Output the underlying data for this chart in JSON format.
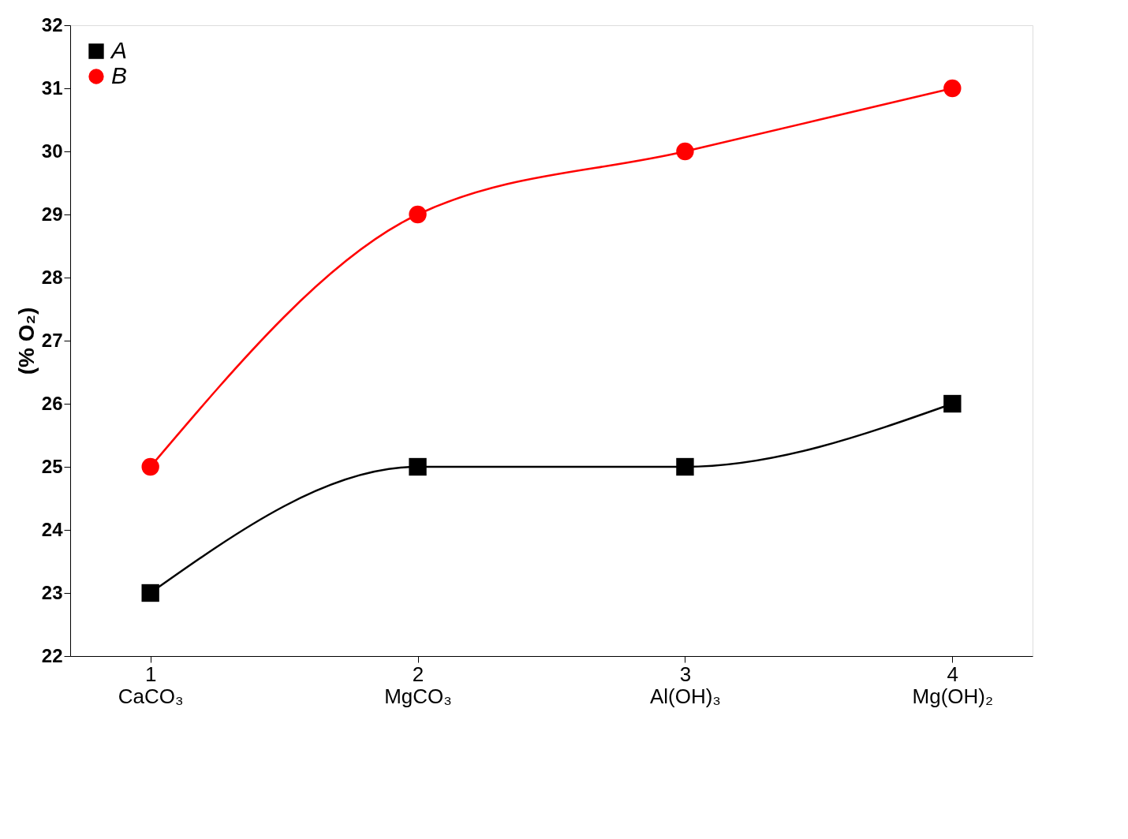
{
  "chart_data": {
    "type": "line",
    "ylabel": "(% O₂)",
    "categories": [
      "1\nCaCO₃",
      "2\nMgCO₃",
      "3\nAl(OH)₃",
      "4\nMg(OH)₂"
    ],
    "series": [
      {
        "name": "A",
        "color": "#000000",
        "marker": "square",
        "values": [
          23,
          25,
          25,
          26
        ]
      },
      {
        "name": "B",
        "color": "#ff0000",
        "marker": "circle",
        "values": [
          25,
          29,
          30,
          31
        ]
      }
    ],
    "ylim": [
      22,
      32
    ],
    "yticks": [
      22,
      23,
      24,
      25,
      26,
      27,
      28,
      29,
      30,
      31,
      32
    ],
    "grid": false,
    "legend": "top left",
    "line_style": "solid"
  }
}
